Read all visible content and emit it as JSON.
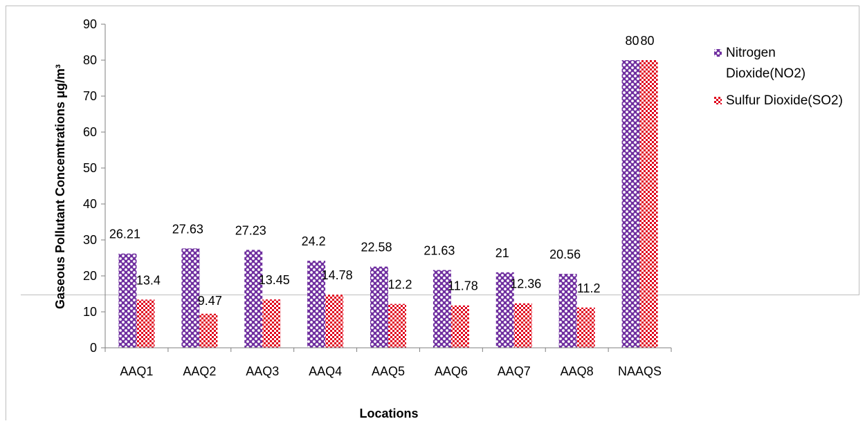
{
  "chart_data": {
    "type": "bar",
    "title": "",
    "xlabel": "Locations",
    "ylabel": "Gaseous Pollutant Concemtrations μg/m³",
    "ylim": [
      0,
      90
    ],
    "yticks": [
      "0",
      "10",
      "20",
      "30",
      "40",
      "50",
      "60",
      "70",
      "80",
      "90"
    ],
    "categories": [
      "AAQ1",
      "AAQ2",
      "AAQ3",
      "AAQ4",
      "AAQ5",
      "AAQ6",
      "AAQ7",
      "AAQ8",
      "NAAQS"
    ],
    "series": [
      {
        "name": "Nitrogen Dioxide(NO2)",
        "values": [
          26.21,
          27.63,
          27.23,
          24.2,
          22.58,
          21.63,
          21,
          20.56,
          80
        ],
        "labels": [
          "26.21",
          "27.63",
          "27.23",
          "24.2",
          "22.58",
          "21.63",
          "21",
          "20.56",
          "80"
        ],
        "color": "#7030a0",
        "pattern": "checker-dots"
      },
      {
        "name": "Sulfur Dioxide(SO2)",
        "values": [
          13.4,
          9.47,
          13.45,
          14.78,
          12.2,
          11.78,
          12.36,
          11.2,
          80
        ],
        "labels": [
          "13.4",
          "9.47",
          "13.45",
          "14.78",
          "12.2",
          "11.78",
          "12.36",
          "11.2",
          "80"
        ],
        "color": "#e0001a",
        "pattern": "checker"
      }
    ],
    "legend_position": "right",
    "grid": false
  }
}
